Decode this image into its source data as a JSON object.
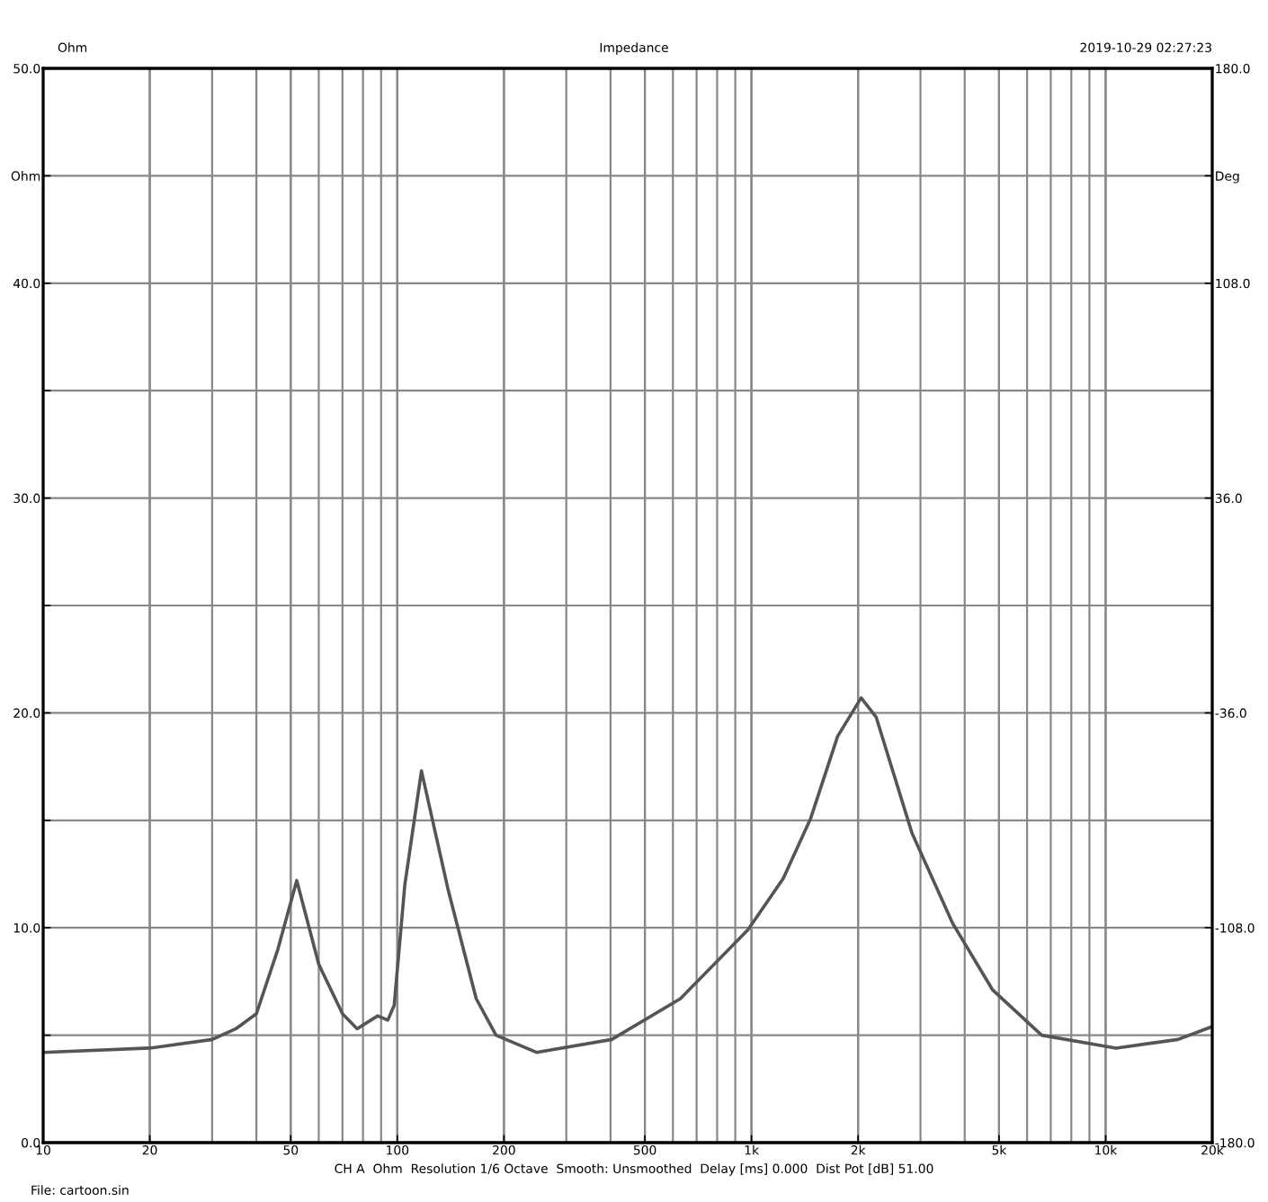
{
  "chart_data": {
    "type": "line",
    "title": "Impedance",
    "annotations": [
      "Ohm",
      "2019-10-29 02:27:23",
      "CH A  Ohm  Resolution 1/6 Octave  Smooth: Unsmoothed  Delay [ms] 0.000  Dist Pot [dB] 51.00",
      "File: cartoon.sin"
    ],
    "log": "x",
    "grid": true,
    "marker": "none",
    "line_style": "solid",
    "xlim": [
      10,
      20000
    ],
    "xticks": [
      {
        "value": 10,
        "label": "10"
      },
      {
        "value": 20,
        "label": "20"
      },
      {
        "value": 50,
        "label": "50"
      },
      {
        "value": 100,
        "label": "100"
      },
      {
        "value": 200,
        "label": "200"
      },
      {
        "value": 500,
        "label": "500"
      },
      {
        "value": 1000,
        "label": "1k"
      },
      {
        "value": 2000,
        "label": "2k"
      },
      {
        "value": 5000,
        "label": "5k"
      },
      {
        "value": 10000,
        "label": "10k"
      },
      {
        "value": 20000,
        "label": "20k"
      }
    ],
    "ylim": [
      0,
      50
    ],
    "yticks": [
      {
        "value": 0,
        "label": "0.0"
      },
      {
        "value": 5,
        "label": null
      },
      {
        "value": 10,
        "label": "10.0"
      },
      {
        "value": 15,
        "label": null
      },
      {
        "value": 20,
        "label": "20.0"
      },
      {
        "value": 25,
        "label": null
      },
      {
        "value": 30,
        "label": "30.0"
      },
      {
        "value": 35,
        "label": null
      },
      {
        "value": 40,
        "label": "40.0"
      },
      {
        "value": 45,
        "label": "Ohm"
      },
      {
        "value": 50,
        "label": "50.0"
      }
    ],
    "y2lim": [
      -180,
      180
    ],
    "y2ticks": [
      {
        "value": -180,
        "label": "-180.0"
      },
      {
        "value": -108,
        "label": "-108.0"
      },
      {
        "value": -36,
        "label": "-36.0"
      },
      {
        "value": 36,
        "label": "36.0"
      },
      {
        "value": 108,
        "label": "108.0"
      },
      {
        "value": 144,
        "label": "Deg"
      },
      {
        "value": 180,
        "label": "180.0"
      }
    ],
    "series": [
      {
        "color": "#555555",
        "x": [
          10,
          20,
          30,
          35,
          40,
          46,
          52,
          60,
          70,
          77,
          88,
          94,
          98,
          105,
          117,
          139,
          167,
          190,
          247,
          403,
          630,
          977,
          1230,
          1470,
          1750,
          2040,
          2250,
          2840,
          3700,
          4800,
          6600,
          10700,
          16000,
          20000
        ],
        "values": [
          4.2,
          4.4,
          4.8,
          5.3,
          6.0,
          9.0,
          12.2,
          8.3,
          6.0,
          5.3,
          5.9,
          5.7,
          6.4,
          12.0,
          17.3,
          11.8,
          6.7,
          5.0,
          4.2,
          4.8,
          6.7,
          9.9,
          12.3,
          15.1,
          18.9,
          20.7,
          19.8,
          14.4,
          10.2,
          7.1,
          5.0,
          4.4,
          4.8,
          5.4
        ]
      }
    ]
  }
}
